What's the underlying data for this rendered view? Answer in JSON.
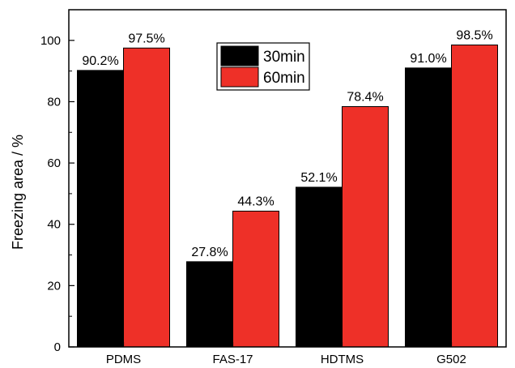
{
  "chart_data": {
    "type": "bar",
    "categories": [
      "PDMS",
      "FAS-17",
      "HDTMS",
      "G502"
    ],
    "series": [
      {
        "name": "30min",
        "values": [
          90.2,
          27.8,
          52.1,
          91.0
        ],
        "labels": [
          "90.2%",
          "27.8%",
          "52.1%",
          "91.0%"
        ],
        "color": "#000000"
      },
      {
        "name": "60min",
        "values": [
          97.5,
          44.3,
          78.4,
          98.5
        ],
        "labels": [
          "97.5%",
          "44.3%",
          "78.4%",
          "98.5%"
        ],
        "color": "#ee3028"
      }
    ],
    "ylabel": "Freezing area / %",
    "xlabel": "",
    "ylim": [
      0,
      110
    ],
    "yticks": [
      0,
      20,
      40,
      60,
      80,
      100
    ],
    "grid": false,
    "legend_position": "top-center"
  }
}
